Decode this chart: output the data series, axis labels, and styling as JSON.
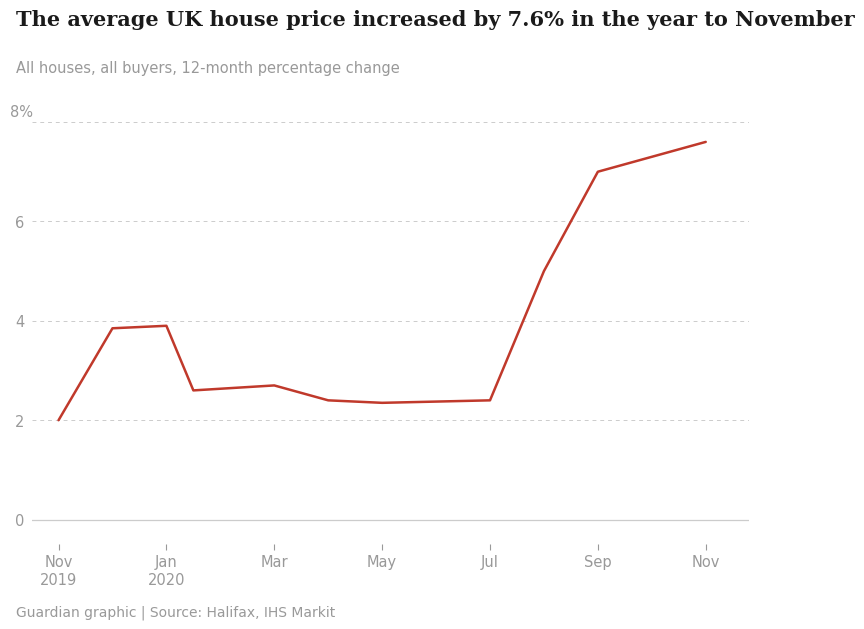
{
  "title": "The average UK house price increased by 7.6% in the year to November",
  "subtitle": "All houses, all buyers, 12-month percentage change",
  "footer": "Guardian graphic | Source: Halifax, IHS Markit",
  "line_color": "#c0392b",
  "background_color": "#ffffff",
  "grid_color": "#cccccc",
  "title_color": "#1a1a1a",
  "axis_color": "#999999",
  "x_vals": [
    0,
    1,
    2,
    2.5,
    4,
    4.5,
    5,
    6,
    8,
    9,
    10,
    11,
    12
  ],
  "y_vals": [
    2.0,
    3.85,
    3.9,
    2.6,
    2.7,
    2.55,
    2.4,
    2.35,
    2.4,
    5.0,
    7.0,
    7.3,
    7.6
  ],
  "ylim": [
    -0.5,
    8.6
  ],
  "xlim": [
    -0.5,
    12.8
  ],
  "yticks": [
    0,
    2,
    4,
    6
  ],
  "xtick_positions": [
    0,
    2,
    4,
    6,
    8,
    10,
    12
  ],
  "xtick_labels": [
    "Nov\n2019",
    "Jan\n2020",
    "Mar",
    "May",
    "Jul",
    "Sep",
    "Nov"
  ],
  "line_width": 1.8,
  "title_fontsize": 15,
  "subtitle_fontsize": 10.5,
  "tick_fontsize": 10.5,
  "footer_fontsize": 10
}
